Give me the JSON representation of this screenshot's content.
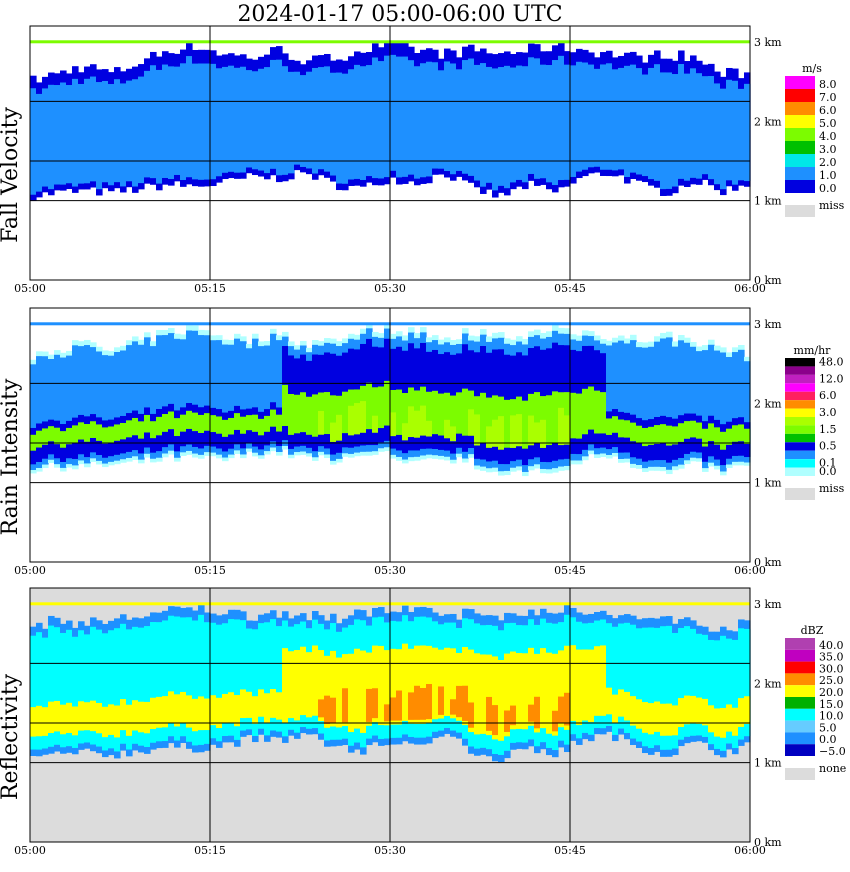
{
  "title": "2024-01-17   05:00-06:00 UTC",
  "chart_data": [
    {
      "type": "heatmap",
      "ylabel": "Fall Velocity",
      "x_ticks": [
        "05:00",
        "05:15",
        "05:30",
        "05:45",
        "06:00"
      ],
      "y_ticks": [
        "0 km",
        "1 km",
        "2 km",
        "3 km"
      ],
      "ylim": [
        0,
        3.2
      ],
      "unit": "m/s",
      "legend": [
        {
          "label": "8.0",
          "color": "#ff00ff"
        },
        {
          "label": "7.0",
          "color": "#ff0000"
        },
        {
          "label": "6.0",
          "color": "#ff8c00"
        },
        {
          "label": "5.0",
          "color": "#ffff00"
        },
        {
          "label": "4.0",
          "color": "#7cfc00"
        },
        {
          "label": "3.0",
          "color": "#00c000"
        },
        {
          "label": "2.0",
          "color": "#00e8e8"
        },
        {
          "label": "1.0",
          "color": "#1e90ff"
        },
        {
          "label": "0.0",
          "color": "#0000e0"
        }
      ],
      "missing_label": "miss",
      "missing_color": "#dcdcdc",
      "background": "#ffffff",
      "cloud_base_km": [
        1.05,
        1.1,
        1.12,
        1.1,
        1.15,
        1.2,
        1.18,
        1.22,
        1.3,
        1.28,
        1.35,
        1.2,
        1.15,
        1.28,
        1.22,
        1.35,
        1.15,
        1.05,
        1.2,
        1.1,
        1.3,
        1.35,
        1.2,
        1.1,
        1.25,
        1.12,
        1.22
      ],
      "cloud_top_km": [
        2.5,
        2.6,
        2.7,
        2.6,
        2.75,
        2.9,
        2.95,
        2.85,
        2.8,
        2.9,
        2.75,
        2.8,
        2.9,
        2.95,
        2.9,
        2.85,
        2.9,
        2.85,
        2.9,
        2.95,
        2.9,
        2.85,
        2.8,
        2.85,
        2.8,
        2.6,
        2.6
      ]
    },
    {
      "type": "heatmap",
      "ylabel": "Rain Intensity",
      "x_ticks": [
        "05:00",
        "05:15",
        "05:30",
        "05:45",
        "06:00"
      ],
      "y_ticks": [
        "0 km",
        "1 km",
        "2 km",
        "3 km"
      ],
      "ylim": [
        0,
        3.2
      ],
      "unit": "mm/hr",
      "legend": [
        {
          "label": "48.0",
          "color": "#000000"
        },
        {
          "label": "",
          "color": "#8b008b"
        },
        {
          "label": "12.0",
          "color": "#c020c0"
        },
        {
          "label": "",
          "color": "#ff00ff"
        },
        {
          "label": "6.0",
          "color": "#ff2060"
        },
        {
          "label": "",
          "color": "#ff8c00"
        },
        {
          "label": "3.0",
          "color": "#ffff00"
        },
        {
          "label": "",
          "color": "#aaff00"
        },
        {
          "label": "1.5",
          "color": "#7cfc00"
        },
        {
          "label": "",
          "color": "#00c000"
        },
        {
          "label": "0.5",
          "color": "#0000e0"
        },
        {
          "label": "",
          "color": "#1e90ff"
        },
        {
          "label": "0.1",
          "color": "#00ffff"
        },
        {
          "label": "0.0",
          "color": "#b0ffff"
        }
      ],
      "missing_label": "miss",
      "missing_color": "#dcdcdc",
      "background": "#ffffff",
      "cloud_base_km": [
        1.15,
        1.2,
        1.2,
        1.22,
        1.25,
        1.3,
        1.3,
        1.28,
        1.35,
        1.38,
        1.3,
        1.28,
        1.3,
        1.35,
        1.25,
        1.3,
        1.25,
        1.05,
        1.15,
        1.1,
        1.3,
        1.35,
        1.2,
        1.1,
        1.22,
        1.12,
        1.25
      ],
      "cloud_top_km": [
        2.6,
        2.7,
        2.75,
        2.65,
        2.8,
        2.9,
        2.95,
        2.85,
        2.8,
        2.9,
        2.75,
        2.8,
        2.95,
        2.95,
        2.9,
        2.85,
        2.9,
        2.85,
        2.85,
        2.95,
        2.9,
        2.85,
        2.8,
        2.85,
        2.8,
        2.7,
        2.65
      ]
    },
    {
      "type": "heatmap",
      "ylabel": "Reflectivity",
      "x_ticks": [
        "05:00",
        "05:15",
        "05:30",
        "05:45",
        "06:00"
      ],
      "y_ticks": [
        "0 km",
        "1 km",
        "2 km",
        "3 km"
      ],
      "ylim": [
        0,
        3.2
      ],
      "unit": "dBZ",
      "legend": [
        {
          "label": "40.0",
          "color": "#b040b0"
        },
        {
          "label": "35.0",
          "color": "#c000c0"
        },
        {
          "label": "30.0",
          "color": "#ff0000"
        },
        {
          "label": "25.0",
          "color": "#ff8c00"
        },
        {
          "label": "20.0",
          "color": "#ffff00"
        },
        {
          "label": "15.0",
          "color": "#00b000"
        },
        {
          "label": "10.0",
          "color": "#00ffff"
        },
        {
          "label": "5.0",
          "color": "#66ccff"
        },
        {
          "label": "0.0",
          "color": "#1e90ff"
        },
        {
          "label": "−5.0",
          "color": "#0000c0"
        }
      ],
      "missing_label": "none",
      "missing_color": "#dcdcdc",
      "background": "#dcdcdc",
      "cloud_base_km": [
        1.05,
        1.1,
        1.12,
        1.1,
        1.15,
        1.2,
        1.18,
        1.22,
        1.3,
        1.28,
        1.35,
        1.2,
        1.15,
        1.28,
        1.22,
        1.35,
        1.15,
        1.05,
        1.2,
        1.1,
        1.3,
        1.35,
        1.2,
        1.1,
        1.25,
        1.12,
        1.22
      ],
      "cloud_top_km": [
        2.7,
        2.8,
        2.75,
        2.8,
        2.85,
        2.9,
        2.95,
        2.9,
        2.85,
        2.9,
        2.85,
        2.8,
        2.9,
        2.95,
        2.9,
        2.85,
        2.9,
        2.85,
        2.9,
        2.95,
        2.9,
        2.85,
        2.8,
        2.85,
        2.75,
        2.7,
        2.75
      ]
    }
  ]
}
